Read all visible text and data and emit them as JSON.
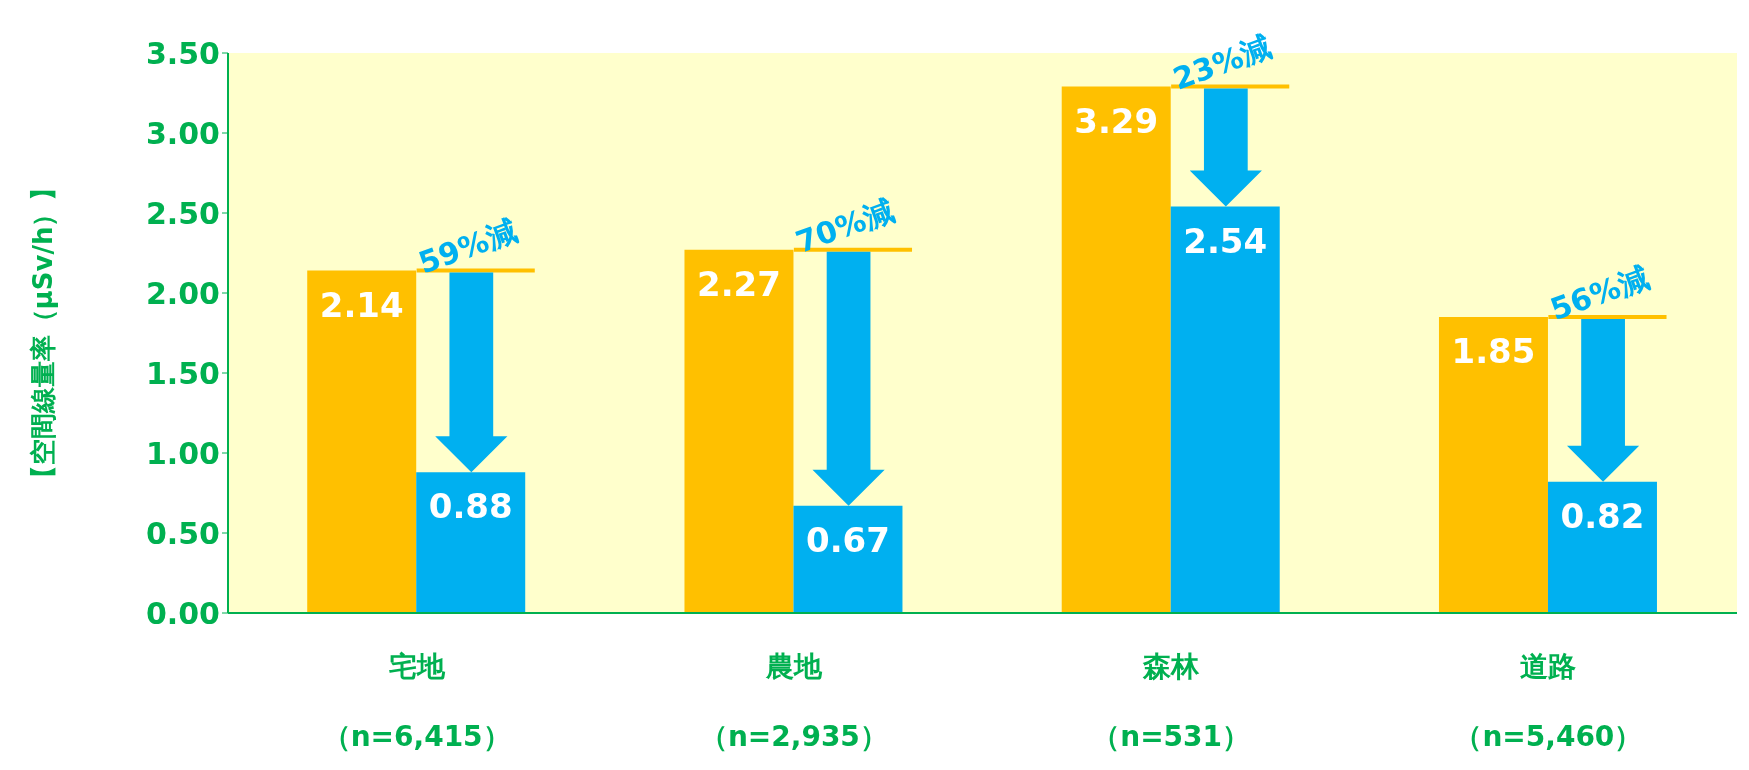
{
  "chart_data": {
    "type": "bar",
    "ylabel": "【空間線量率（μSv/h）】",
    "categories": [
      "宅地（n=6,415）",
      "農地（n=2,935）",
      "森林（n=531）",
      "道路（n=5,460）"
    ],
    "series": [
      {
        "color": "#ffc000",
        "values": [
          2.14,
          2.27,
          3.29,
          1.85
        ]
      },
      {
        "color": "#00b0f0",
        "values": [
          0.88,
          0.67,
          2.54,
          0.82
        ]
      }
    ],
    "ylim": [
      0,
      3.5
    ],
    "yticks": [
      {
        "value": 0,
        "label": "0.00"
      },
      {
        "value": 0.5,
        "label": "0.50"
      },
      {
        "value": 1,
        "label": "1.00"
      },
      {
        "value": 1.5,
        "label": "1.50"
      },
      {
        "value": 2,
        "label": "2.00"
      },
      {
        "value": 2.5,
        "label": "2.50"
      },
      {
        "value": 3,
        "label": "3.00"
      },
      {
        "value": 3.5,
        "label": "3.50"
      }
    ],
    "data_labels": true,
    "annotations": [
      "59%減",
      "70%減",
      "23%減",
      "56%減"
    ]
  }
}
